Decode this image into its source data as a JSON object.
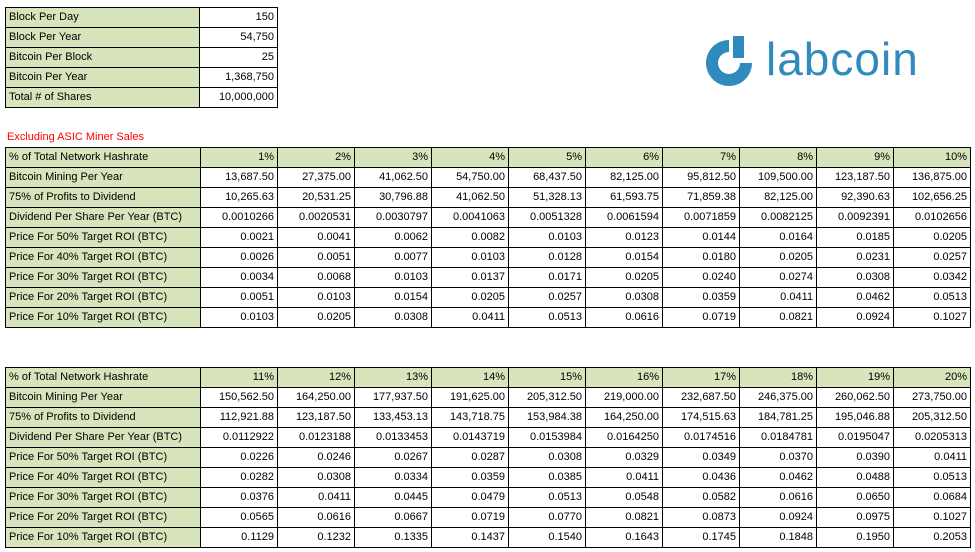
{
  "summary": {
    "rows": [
      {
        "label": "Block Per Day",
        "value": "150"
      },
      {
        "label": "Block Per Year",
        "value": "54,750"
      },
      {
        "label": "Bitcoin Per Block",
        "value": "25"
      },
      {
        "label": "Bitcoin Per Year",
        "value": "1,368,750"
      },
      {
        "label": "Total # of Shares",
        "value": "10,000,000"
      }
    ]
  },
  "logo": {
    "text": "labcoin",
    "color": "#2f8bbd"
  },
  "note": "Excluding ASIC Miner Sales",
  "tables": [
    {
      "header_label": "% of Total Network Hashrate",
      "header_values": [
        "1%",
        "2%",
        "3%",
        "4%",
        "5%",
        "6%",
        "7%",
        "8%",
        "9%",
        "10%"
      ],
      "rows": [
        {
          "label": "Bitcoin Mining Per Year",
          "values": [
            "13,687.50",
            "27,375.00",
            "41,062.50",
            "54,750.00",
            "68,437.50",
            "82,125.00",
            "95,812.50",
            "109,500.00",
            "123,187.50",
            "136,875.00"
          ]
        },
        {
          "label": "75% of Profits to Dividend",
          "values": [
            "10,265.63",
            "20,531.25",
            "30,796.88",
            "41,062.50",
            "51,328.13",
            "61,593.75",
            "71,859.38",
            "82,125.00",
            "92,390.63",
            "102,656.25"
          ]
        },
        {
          "label": "Dividend Per Share Per Year (BTC)",
          "values": [
            "0.0010266",
            "0.0020531",
            "0.0030797",
            "0.0041063",
            "0.0051328",
            "0.0061594",
            "0.0071859",
            "0.0082125",
            "0.0092391",
            "0.0102656"
          ]
        },
        {
          "label": "Price For 50% Target ROI (BTC)",
          "values": [
            "0.0021",
            "0.0041",
            "0.0062",
            "0.0082",
            "0.0103",
            "0.0123",
            "0.0144",
            "0.0164",
            "0.0185",
            "0.0205"
          ]
        },
        {
          "label": "Price For 40% Target ROI (BTC)",
          "values": [
            "0.0026",
            "0.0051",
            "0.0077",
            "0.0103",
            "0.0128",
            "0.0154",
            "0.0180",
            "0.0205",
            "0.0231",
            "0.0257"
          ]
        },
        {
          "label": "Price For 30% Target ROI (BTC)",
          "values": [
            "0.0034",
            "0.0068",
            "0.0103",
            "0.0137",
            "0.0171",
            "0.0205",
            "0.0240",
            "0.0274",
            "0.0308",
            "0.0342"
          ]
        },
        {
          "label": "Price For 20% Target ROI (BTC)",
          "values": [
            "0.0051",
            "0.0103",
            "0.0154",
            "0.0205",
            "0.0257",
            "0.0308",
            "0.0359",
            "0.0411",
            "0.0462",
            "0.0513"
          ]
        },
        {
          "label": "Price For 10% Target ROI (BTC)",
          "values": [
            "0.0103",
            "0.0205",
            "0.0308",
            "0.0411",
            "0.0513",
            "0.0616",
            "0.0719",
            "0.0821",
            "0.0924",
            "0.1027"
          ]
        }
      ]
    },
    {
      "header_label": "% of Total Network Hashrate",
      "header_values": [
        "11%",
        "12%",
        "13%",
        "14%",
        "15%",
        "16%",
        "17%",
        "18%",
        "19%",
        "20%"
      ],
      "rows": [
        {
          "label": "Bitcoin Mining Per Year",
          "values": [
            "150,562.50",
            "164,250.00",
            "177,937.50",
            "191,625.00",
            "205,312.50",
            "219,000.00",
            "232,687.50",
            "246,375.00",
            "260,062.50",
            "273,750.00"
          ]
        },
        {
          "label": "75% of Profits to Dividend",
          "values": [
            "112,921.88",
            "123,187.50",
            "133,453.13",
            "143,718.75",
            "153,984.38",
            "164,250.00",
            "174,515.63",
            "184,781.25",
            "195,046.88",
            "205,312.50"
          ]
        },
        {
          "label": "Dividend Per Share Per Year (BTC)",
          "values": [
            "0.0112922",
            "0.0123188",
            "0.0133453",
            "0.0143719",
            "0.0153984",
            "0.0164250",
            "0.0174516",
            "0.0184781",
            "0.0195047",
            "0.0205313"
          ]
        },
        {
          "label": "Price For 50% Target ROI (BTC)",
          "values": [
            "0.0226",
            "0.0246",
            "0.0267",
            "0.0287",
            "0.0308",
            "0.0329",
            "0.0349",
            "0.0370",
            "0.0390",
            "0.0411"
          ]
        },
        {
          "label": "Price For 40% Target ROI (BTC)",
          "values": [
            "0.0282",
            "0.0308",
            "0.0334",
            "0.0359",
            "0.0385",
            "0.0411",
            "0.0436",
            "0.0462",
            "0.0488",
            "0.0513"
          ]
        },
        {
          "label": "Price For 30% Target ROI (BTC)",
          "values": [
            "0.0376",
            "0.0411",
            "0.0445",
            "0.0479",
            "0.0513",
            "0.0548",
            "0.0582",
            "0.0616",
            "0.0650",
            "0.0684"
          ]
        },
        {
          "label": "Price For 20% Target ROI (BTC)",
          "values": [
            "0.0565",
            "0.0616",
            "0.0667",
            "0.0719",
            "0.0770",
            "0.0821",
            "0.0873",
            "0.0924",
            "0.0975",
            "0.1027"
          ]
        },
        {
          "label": "Price For 10% Target ROI (BTC)",
          "values": [
            "0.1129",
            "0.1232",
            "0.1335",
            "0.1437",
            "0.1540",
            "0.1643",
            "0.1745",
            "0.1848",
            "0.1950",
            "0.2053"
          ]
        }
      ]
    }
  ]
}
